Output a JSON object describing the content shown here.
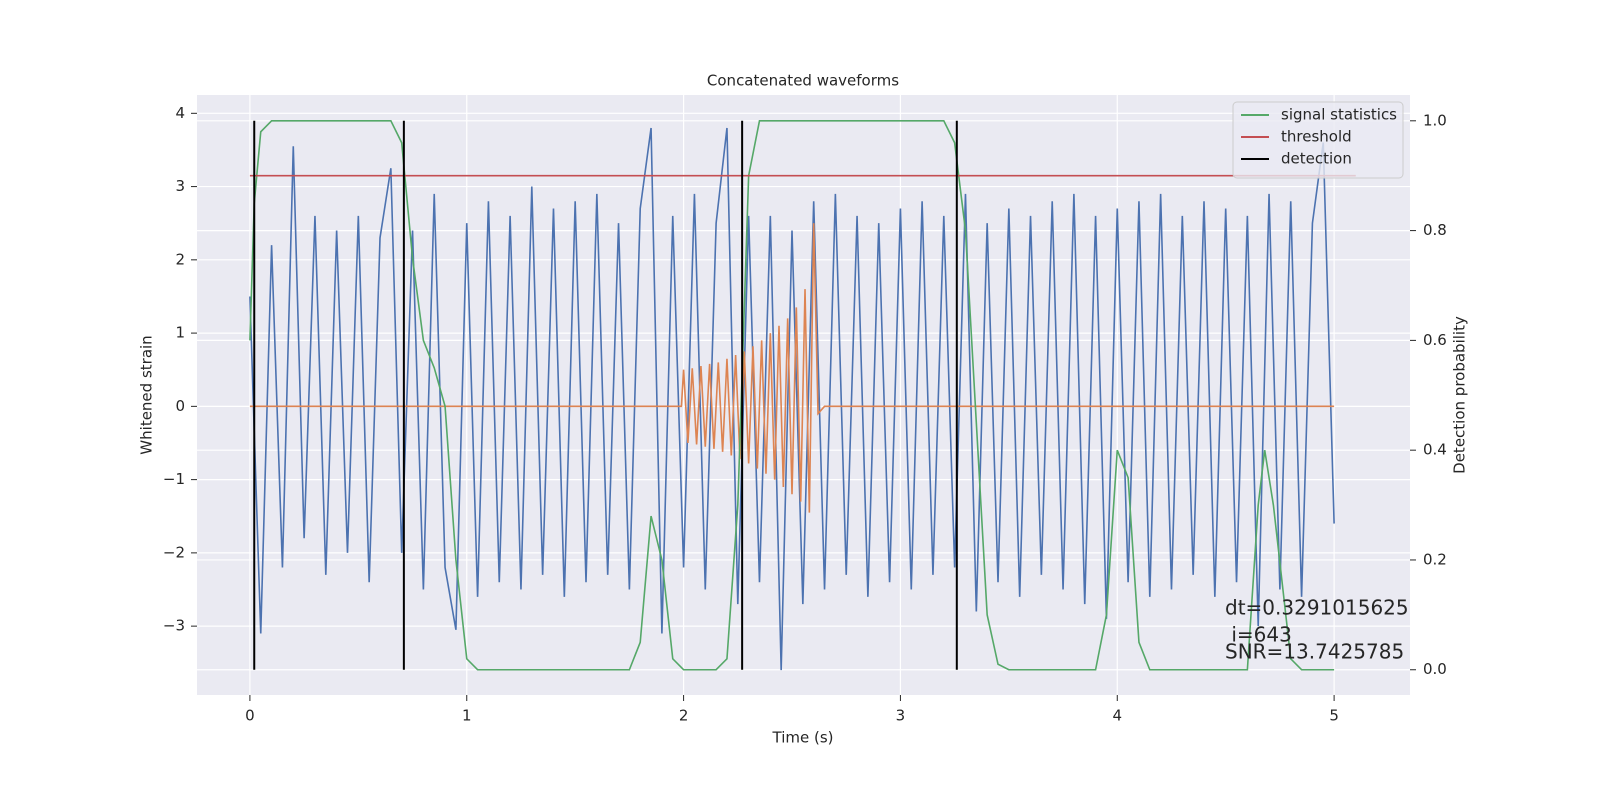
{
  "chart_data": {
    "type": "line",
    "title": "Concatenated waveforms",
    "xlabel": "Time (s)",
    "ylabel": "Whitened strain",
    "y2label": "Detection probability",
    "xlim": [
      -0.244,
      5.35
    ],
    "ylim": [
      -3.94,
      4.25
    ],
    "y2lim": [
      -0.046,
      1.047
    ],
    "xticks": [
      0,
      1,
      2,
      3,
      4,
      5
    ],
    "yticks": [
      {
        "value": -3,
        "label": "−3"
      },
      {
        "value": -2,
        "label": "−2"
      },
      {
        "value": -1,
        "label": "−1"
      },
      0,
      1,
      2,
      3,
      4
    ],
    "y2ticks": [
      {
        "value": 0,
        "label": "0.0"
      },
      {
        "value": 0.2,
        "label": "0.2"
      },
      {
        "value": 0.4,
        "label": "0.4"
      },
      {
        "value": 0.6,
        "label": "0.6"
      },
      {
        "value": 0.8,
        "label": "0.8"
      },
      {
        "value": 1,
        "label": "1.0"
      }
    ],
    "grid": true,
    "legend": "upper right",
    "series": [
      {
        "color": "#4c72b0",
        "kind": "line",
        "x": [
          0,
          0.05,
          0.1,
          0.15,
          0.2,
          0.25,
          0.3,
          0.35,
          0.4,
          0.45,
          0.5,
          0.55,
          0.6,
          0.65,
          0.7,
          0.75,
          0.8,
          0.85,
          0.9,
          0.95,
          1,
          1.05,
          1.1,
          1.15,
          1.2,
          1.25,
          1.3,
          1.35,
          1.4,
          1.45,
          1.5,
          1.55,
          1.6,
          1.65,
          1.7,
          1.75,
          1.8,
          1.85,
          1.9,
          1.95,
          2,
          2.05,
          2.1,
          2.15,
          2.2,
          2.25,
          2.3,
          2.35,
          2.4,
          2.45,
          2.5,
          2.55,
          2.6,
          2.65,
          2.7,
          2.75,
          2.8,
          2.85,
          2.9,
          2.95,
          3,
          3.05,
          3.1,
          3.15,
          3.2,
          3.25,
          3.3,
          3.35,
          3.4,
          3.45,
          3.5,
          3.55,
          3.6,
          3.65,
          3.7,
          3.75,
          3.8,
          3.85,
          3.9,
          3.95,
          4,
          4.05,
          4.1,
          4.15,
          4.2,
          4.25,
          4.3,
          4.35,
          4.4,
          4.45,
          4.5,
          4.55,
          4.6,
          4.65,
          4.7,
          4.75,
          4.8,
          4.85,
          4.9,
          4.95,
          5
        ],
        "values": [
          1.5,
          -3.1,
          2.2,
          -2.2,
          3.55,
          -1.8,
          2.6,
          -2.3,
          2.4,
          -2.0,
          2.6,
          -2.4,
          2.3,
          3.25,
          -2.0,
          2.4,
          -2.5,
          2.9,
          -2.2,
          -3.05,
          2.5,
          -2.6,
          2.8,
          -2.4,
          2.6,
          -2.5,
          3.0,
          -2.3,
          2.7,
          -2.6,
          2.8,
          -2.4,
          2.9,
          -2.3,
          2.5,
          -2.5,
          2.7,
          3.8,
          -3.1,
          2.6,
          -2.2,
          2.9,
          -2.5,
          2.5,
          3.8,
          -2.7,
          2.6,
          -2.4,
          2.6,
          -3.6,
          2.4,
          -2.7,
          2.8,
          -2.5,
          2.9,
          -2.3,
          2.6,
          -2.6,
          2.5,
          -2.4,
          2.7,
          -2.5,
          2.8,
          -2.3,
          2.6,
          -2.2,
          2.9,
          -2.8,
          2.5,
          -2.4,
          2.7,
          -2.6,
          2.6,
          -2.3,
          2.8,
          -2.5,
          2.9,
          -2.7,
          2.6,
          -2.9,
          2.7,
          -2.4,
          2.8,
          -2.6,
          2.9,
          -2.5,
          2.6,
          -2.3,
          2.8,
          -2.6,
          2.7,
          -2.4,
          2.6,
          -3.0,
          2.9,
          -2.5,
          2.8,
          -2.6,
          2.5,
          3.6,
          -1.6
        ]
      },
      {
        "color": "#dd8452",
        "kind": "line",
        "x": [
          0,
          1.99,
          2.0,
          2.02,
          2.04,
          2.06,
          2.08,
          2.1,
          2.12,
          2.14,
          2.16,
          2.18,
          2.2,
          2.22,
          2.24,
          2.26,
          2.28,
          2.3,
          2.32,
          2.34,
          2.36,
          2.38,
          2.4,
          2.42,
          2.44,
          2.46,
          2.48,
          2.5,
          2.52,
          2.54,
          2.56,
          2.58,
          2.6,
          2.62,
          2.65,
          5
        ],
        "values": [
          0,
          0,
          0.5,
          -0.5,
          0.52,
          -0.52,
          0.55,
          -0.55,
          0.58,
          -0.58,
          0.6,
          -0.62,
          0.65,
          -0.67,
          0.7,
          -0.72,
          0.75,
          -0.78,
          0.82,
          -0.85,
          0.9,
          -0.92,
          1.0,
          -1.0,
          1.1,
          -1.1,
          1.2,
          -1.2,
          1.35,
          -1.3,
          1.6,
          -1.45,
          2.5,
          -0.1,
          0,
          0
        ]
      },
      {
        "name": "signal statistics",
        "color": "#55a868",
        "kind": "line",
        "axis": "y2",
        "x": [
          0,
          0.02,
          0.05,
          0.1,
          0.65,
          0.7,
          0.75,
          0.8,
          0.85,
          0.9,
          0.95,
          1.0,
          1.05,
          1.75,
          1.8,
          1.85,
          1.9,
          1.95,
          2.0,
          2.15,
          2.2,
          2.25,
          2.3,
          2.35,
          3.2,
          3.25,
          3.3,
          3.35,
          3.4,
          3.45,
          3.5,
          3.9,
          3.95,
          4.0,
          4.05,
          4.1,
          4.15,
          4.6,
          4.65,
          4.68,
          4.72,
          4.8,
          4.85,
          5.0
        ],
        "values": [
          0.6,
          0.85,
          0.98,
          1.0,
          1.0,
          0.96,
          0.75,
          0.6,
          0.55,
          0.48,
          0.2,
          0.02,
          0,
          0,
          0.05,
          0.28,
          0.2,
          0.02,
          0,
          0,
          0.02,
          0.3,
          0.9,
          1.0,
          1.0,
          0.96,
          0.8,
          0.45,
          0.1,
          0.01,
          0,
          0,
          0.1,
          0.4,
          0.35,
          0.05,
          0,
          0,
          0.3,
          0.4,
          0.3,
          0.02,
          0,
          0
        ]
      },
      {
        "name": "threshold",
        "color": "#c44e52",
        "kind": "line",
        "axis": "y2",
        "x": [
          0,
          5.1
        ],
        "values": [
          0.9,
          0.9
        ]
      },
      {
        "name": "detection",
        "color": "#000000",
        "kind": "vline",
        "axis": "y2",
        "x": [
          0.02,
          0.71,
          2.27,
          3.26
        ],
        "values": [
          1,
          1,
          1,
          1
        ]
      }
    ],
    "annotations": [
      "dt=0.3291015625",
      " i=643",
      "SNR=13.7425785"
    ]
  }
}
